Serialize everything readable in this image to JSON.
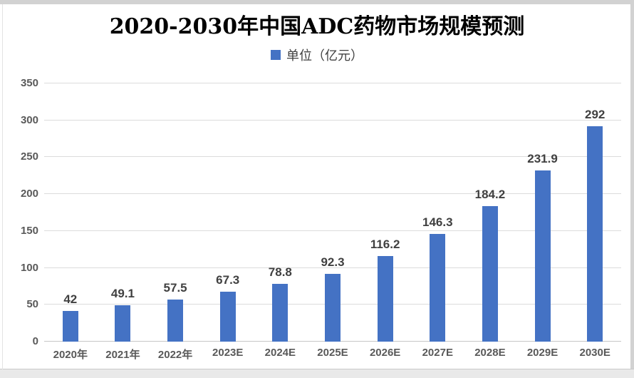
{
  "header": {
    "title": "2020-2030年中国ADC药物市场规模预测",
    "legend_label": "单位（亿元）"
  },
  "chart_data": {
    "type": "bar",
    "title": "2020-2030年中国ADC药物市场规模预测",
    "legend_entries": [
      "单位（亿元）"
    ],
    "legend_position": "top",
    "categories": [
      "2020年",
      "2021年",
      "2022年",
      "2023E",
      "2024E",
      "2025E",
      "2026E",
      "2027E",
      "2028E",
      "2029E",
      "2030E"
    ],
    "values": [
      42,
      49.1,
      57.5,
      67.3,
      78.8,
      92.3,
      116.2,
      146.3,
      184.2,
      231.9,
      292
    ],
    "xlabel": "",
    "ylabel": "",
    "ylim": [
      0,
      350
    ],
    "yticks": [
      0,
      50,
      100,
      150,
      200,
      250,
      300,
      350
    ],
    "grid": true,
    "data_labels": true,
    "colors": {
      "bar": "#4472C4",
      "data_label": "#404040",
      "axis_label": "#595959",
      "gridline": "#dcdcdc",
      "title": "#000000"
    }
  }
}
